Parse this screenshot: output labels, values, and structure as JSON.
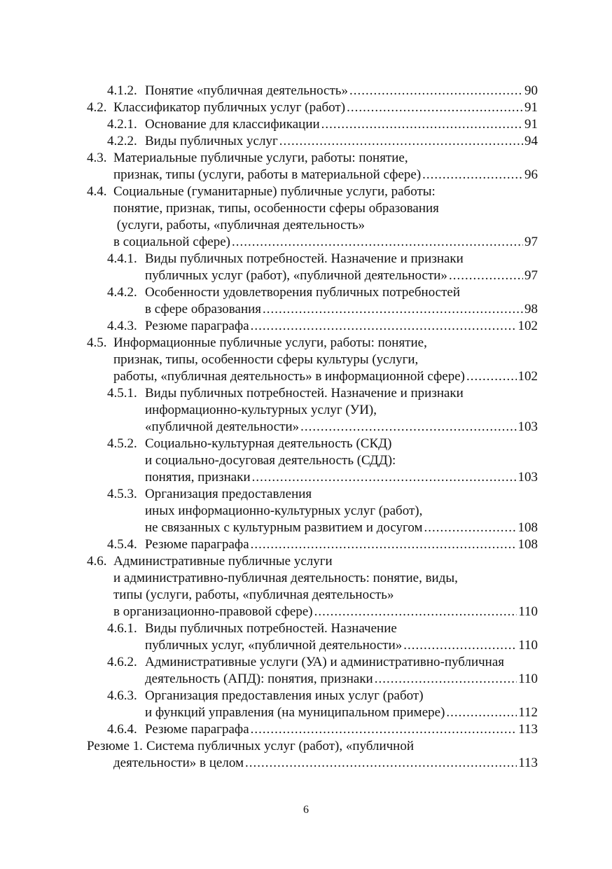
{
  "toc": [
    {
      "level": 2,
      "number": "4.1.2.",
      "lines": [
        "Понятие «публичная деятельность»"
      ],
      "page": "90"
    },
    {
      "level": 1,
      "number": "4.2.",
      "lines": [
        "Классификатор публичных услуг (работ)"
      ],
      "page": "91"
    },
    {
      "level": 2,
      "number": "4.2.1.",
      "lines": [
        "Основание для классификации"
      ],
      "page": "91"
    },
    {
      "level": 2,
      "number": "4.2.2.",
      "lines": [
        "Виды публичных услуг"
      ],
      "page": "94"
    },
    {
      "level": 1,
      "number": "4.3.",
      "lines": [
        "Материальные публичные услуги, работы: понятие,",
        "признак, типы (услуги, работы в материальной сфере)"
      ],
      "page": "96"
    },
    {
      "level": 1,
      "number": "4.4.",
      "lines": [
        "Социальные (гуманитарные) публичные услуги, работы:",
        "понятие, признак, типы, особенности сферы образования",
        " (услуги, работы, «публичная деятельность»",
        "в социальной сфере)"
      ],
      "page": "97"
    },
    {
      "level": 2,
      "number": "4.4.1.",
      "lines": [
        "Виды публичных потребностей. Назначение и признаки",
        "публичных услуг (работ), «публичной деятельности»"
      ],
      "page": "97"
    },
    {
      "level": 2,
      "number": "4.4.2.",
      "lines": [
        "Особенности удовлетворения публичных потребностей",
        "в сфере образования"
      ],
      "page": "98"
    },
    {
      "level": 2,
      "number": "4.4.3.",
      "lines": [
        "Резюме параграфа"
      ],
      "page": "102"
    },
    {
      "level": 1,
      "number": "4.5.",
      "lines": [
        "Информационные публичные услуги, работы: понятие,",
        "признак, типы, особенности сферы культуры (услуги,",
        "работы, «публичная деятельность» в информационной сфере)"
      ],
      "page": "102"
    },
    {
      "level": 2,
      "number": "4.5.1.",
      "lines": [
        "Виды публичных потребностей. Назначение и признаки",
        "информационно-культурных услуг (УИ),",
        "«публичной деятельности»"
      ],
      "page": "103"
    },
    {
      "level": 2,
      "number": "4.5.2.",
      "lines": [
        "Социально-культурная деятельность (СКД)",
        "и социально-досуговая деятельность (СДД):",
        "понятия, признаки"
      ],
      "page": "103"
    },
    {
      "level": 2,
      "number": "4.5.3.",
      "lines": [
        "Организация предоставления",
        "иных информационно-культурных услуг (работ),",
        "не связанных с культурным развитием и досугом"
      ],
      "page": "108"
    },
    {
      "level": 2,
      "number": "4.5.4.",
      "lines": [
        "Резюме параграфа"
      ],
      "page": "108"
    },
    {
      "level": 1,
      "number": "4.6.",
      "lines": [
        "Административные публичные услуги",
        "и административно-публичная деятельность: понятие, виды,",
        "типы (услуги, работы, «публичная деятельность»",
        "в организационно-правовой сфере)"
      ],
      "page": "110"
    },
    {
      "level": 2,
      "number": "4.6.1.",
      "lines": [
        "Виды публичных потребностей. Назначение",
        "публичных услуг, «публичной деятельности»"
      ],
      "page": "110"
    },
    {
      "level": 2,
      "number": "4.6.2.",
      "lines": [
        "Административные услуги (УА) и административно-публичная",
        "деятельность (АПД): понятия, признаки"
      ],
      "page": "110"
    },
    {
      "level": 2,
      "number": "4.6.3.",
      "lines": [
        "Организация предоставления иных услуг (работ)",
        "и функций управления (на муниципальном примере)"
      ],
      "page": "112"
    },
    {
      "level": 2,
      "number": "4.6.4.",
      "lines": [
        "Резюме параграфа"
      ],
      "page": "113"
    },
    {
      "level": 0,
      "number": "Резюме 1.",
      "lines": [
        "Система публичных услуг (работ), «публичной",
        "деятельности» в целом"
      ],
      "page": "113"
    }
  ],
  "page_number": "6"
}
